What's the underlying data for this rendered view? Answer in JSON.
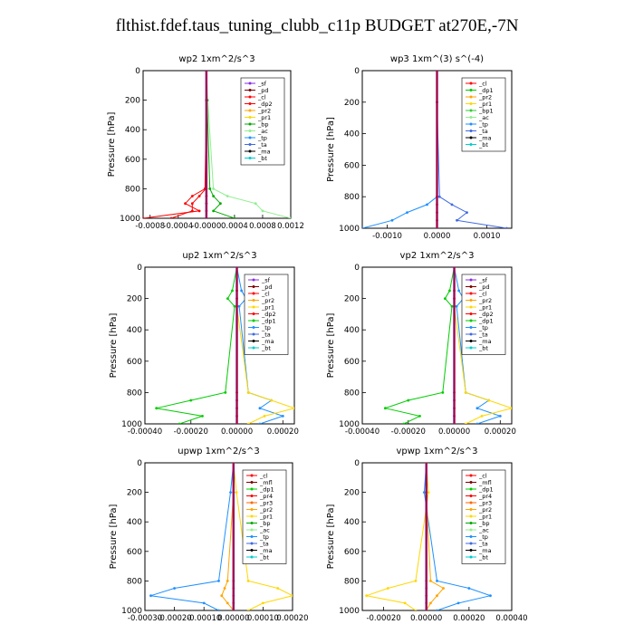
{
  "page": {
    "title": "flthist.fdef.taus_tuning_clubb_c11p  BUDGET at270E,-7N"
  },
  "colors": {
    "_sf": "#8a2be2",
    "_pd": "#800000",
    "_cl": "#ff0000",
    "_dp2": "#ff0000",
    "_pr2": "#ffa500",
    "_pr1": "#ffd700",
    "_bp": "#00aa00",
    "_ac": "#90ee90",
    "_tp": "#1e90ff",
    "_ta": "#4169e1",
    "_ma": "#000000",
    "_bt": "#00cccc",
    "_dp1": "#00cc00",
    "_mfl": "#800000",
    "_pr4": "#ff0000",
    "_pr3": "#ff6600",
    "_bp1": "#32cd32",
    "_pr1b": "#ffd700"
  },
  "chart_data": [
    {
      "type": "line",
      "title": "wp2   1xm^2/s^3",
      "ylabel": "Pressure  [hPa]",
      "xlim": [
        -0.0009,
        0.0012
      ],
      "ylim": [
        1000,
        0
      ],
      "xticks": [
        -0.0008,
        -0.0004,
        0.0,
        0.0004,
        0.0008,
        0.0012
      ],
      "xtick_labels": [
        "-0.0008",
        "-0.0004",
        "-0.0000",
        "0.0004",
        "0.0008",
        "0.0012"
      ],
      "yticks": [
        0,
        200,
        400,
        600,
        800,
        1000
      ],
      "ytick_labels": [
        "0",
        "200",
        "400",
        "600",
        "800",
        "1000"
      ],
      "legend": [
        "_sf",
        "_pd",
        "_cl",
        "_dp2",
        "_pr2",
        "_pr1",
        "_bp",
        "_ac",
        "_tp",
        "_ta",
        "_ma",
        "_bt"
      ],
      "legend_position": "top-right",
      "pressure": [
        0,
        200,
        800,
        850,
        900,
        950,
        1000
      ],
      "series": [
        {
          "name": "_cl",
          "values": [
            0,
            0,
            -2e-05,
            -0.0002,
            -0.0003,
            -0.0001,
            -0.0009
          ]
        },
        {
          "name": "_dp2",
          "values": [
            0,
            0,
            -1e-05,
            -0.0001,
            -0.0002,
            -0.0002,
            -0.0005
          ]
        },
        {
          "name": "_ac",
          "values": [
            0,
            2e-05,
            0.0001,
            0.0003,
            0.0007,
            0.0008,
            0.0012
          ]
        },
        {
          "name": "_bp",
          "values": [
            0,
            1e-05,
            5e-05,
            0.0001,
            0.0002,
            0.0001,
            0.0004
          ]
        },
        {
          "name": "_pd",
          "values": [
            0,
            0,
            0,
            0,
            0,
            0,
            0
          ]
        }
      ]
    },
    {
      "type": "line",
      "title": "wp3   1xm^(3) s^(-4)",
      "ylabel": "Pressure  [hPa]",
      "xlim": [
        -0.0015,
        0.0015
      ],
      "ylim": [
        1000,
        0
      ],
      "xticks": [
        -0.001,
        0.0,
        0.001
      ],
      "xtick_labels": [
        "-0.0010",
        "0.0000",
        "0.0010"
      ],
      "yticks": [
        0,
        200,
        400,
        600,
        800,
        1000
      ],
      "ytick_labels": [
        "0",
        "200",
        "400",
        "600",
        "800",
        "1000"
      ],
      "legend": [
        "_cl",
        "_dp1",
        "_pr2",
        "_pr1",
        "_bp1",
        "_ac",
        "_tp",
        "_ta",
        "_ma",
        "_bt"
      ],
      "legend_position": "top-right",
      "pressure": [
        0,
        200,
        800,
        850,
        900,
        950,
        1000
      ],
      "series": [
        {
          "name": "_tp",
          "values": [
            0,
            0,
            0,
            -0.0002,
            -0.0006,
            -0.0009,
            -0.0015
          ]
        },
        {
          "name": "_ta",
          "values": [
            0,
            0,
            5e-05,
            0.0003,
            0.0006,
            0.0004,
            0.0014
          ]
        },
        {
          "name": "_cl",
          "values": [
            0,
            0,
            0,
            0,
            0,
            0,
            0
          ]
        }
      ]
    },
    {
      "type": "line",
      "title": "up2   1xm^2/s^3",
      "ylabel": "Pressure  [hPa]",
      "xlim": [
        -0.0004,
        0.00025
      ],
      "ylim": [
        1000,
        0
      ],
      "xticks": [
        -0.0004,
        -0.0002,
        0.0,
        0.0002
      ],
      "xtick_labels": [
        "-0.00040",
        "-0.00020",
        "0.00000",
        "0.00020"
      ],
      "yticks": [
        0,
        200,
        400,
        600,
        800,
        1000
      ],
      "ytick_labels": [
        "0",
        "200",
        "400",
        "600",
        "800",
        "1000"
      ],
      "legend": [
        "_sf",
        "_pd",
        "_cl",
        "_pr2",
        "_pr1",
        "_dp2",
        "_dp1",
        "_tp",
        "_ta",
        "_ma",
        "_bt"
      ],
      "legend_position": "top-right",
      "pressure": [
        0,
        150,
        200,
        250,
        800,
        850,
        900,
        950,
        1000
      ],
      "series": [
        {
          "name": "_dp1",
          "values": [
            0,
            -2e-05,
            -4e-05,
            -1e-05,
            -5e-05,
            -0.0002,
            -0.00035,
            -0.00015,
            -0.00025
          ]
        },
        {
          "name": "_tp",
          "values": [
            0,
            2e-05,
            4e-05,
            1e-05,
            5e-05,
            0.00015,
            0.0001,
            0.0002,
            0.0001
          ]
        },
        {
          "name": "_pr1",
          "values": [
            0,
            0,
            0,
            0,
            5e-05,
            0.00015,
            0.00025,
            0.00012,
            5e-05
          ]
        },
        {
          "name": "_cl",
          "values": [
            0,
            0,
            0,
            0,
            0,
            0,
            0,
            0,
            0
          ]
        }
      ]
    },
    {
      "type": "line",
      "title": "vp2   1xm^2/s^3",
      "ylabel": "Pressure  [hPa]",
      "xlim": [
        -0.0004,
        0.00025
      ],
      "ylim": [
        1000,
        0
      ],
      "xticks": [
        -0.0004,
        -0.0002,
        0.0,
        0.0002
      ],
      "xtick_labels": [
        "-0.00040",
        "-0.00020",
        "0.00000",
        "0.00020"
      ],
      "yticks": [
        0,
        200,
        400,
        600,
        800,
        1000
      ],
      "ytick_labels": [
        "0",
        "200",
        "400",
        "600",
        "800",
        "1000"
      ],
      "legend": [
        "_sf",
        "_pd",
        "_cl",
        "_pr2",
        "_pr1",
        "_dp2",
        "_dp1",
        "_tp",
        "_ta",
        "_ma",
        "_bt"
      ],
      "legend_position": "top-right",
      "pressure": [
        0,
        150,
        200,
        250,
        800,
        850,
        900,
        950,
        1000
      ],
      "series": [
        {
          "name": "_dp1",
          "values": [
            0,
            -2e-05,
            -4e-05,
            -1e-05,
            -5e-05,
            -0.0002,
            -0.0003,
            -0.00015,
            -0.00022
          ]
        },
        {
          "name": "_tp",
          "values": [
            0,
            2e-05,
            4e-05,
            1e-05,
            5e-05,
            0.00015,
            0.0001,
            0.0002,
            0.0001
          ]
        },
        {
          "name": "_pr1",
          "values": [
            0,
            0,
            0,
            0,
            5e-05,
            0.00015,
            0.00025,
            0.00012,
            5e-05
          ]
        },
        {
          "name": "_cl",
          "values": [
            0,
            0,
            0,
            0,
            0,
            0,
            0,
            0,
            0
          ]
        }
      ]
    },
    {
      "type": "line",
      "title": "upwp   1xm^2/s^3",
      "ylabel": "Pressure  [hPa]",
      "xlim": [
        -0.0003,
        0.0002
      ],
      "ylim": [
        1000,
        0
      ],
      "xticks": [
        -0.0003,
        -0.0002,
        -0.0001,
        0.0,
        0.0001,
        0.0002
      ],
      "xtick_labels": [
        "-0.00030",
        "-0.00020",
        "-0.00010",
        "0.00000",
        "0.00010",
        "0.00020"
      ],
      "yticks": [
        0,
        200,
        400,
        600,
        800,
        1000
      ],
      "ytick_labels": [
        "0",
        "200",
        "400",
        "600",
        "800",
        "1000"
      ],
      "legend": [
        "_cl",
        "_mfl",
        "_dp1",
        "_pr4",
        "_pr3",
        "_pr2",
        "_pr1",
        "_bp",
        "_ac",
        "_tp",
        "_ta",
        "_ma",
        "_bt"
      ],
      "legend_position": "top-right",
      "pressure": [
        0,
        200,
        800,
        850,
        900,
        950,
        1000
      ],
      "series": [
        {
          "name": "_tp",
          "values": [
            0,
            -1e-05,
            -5e-05,
            -0.0002,
            -0.00028,
            -0.0001,
            -5e-05
          ]
        },
        {
          "name": "_pr1",
          "values": [
            0,
            1e-05,
            5e-05,
            0.00015,
            0.0002,
            0.0001,
            5e-05
          ]
        },
        {
          "name": "_pr2",
          "values": [
            0,
            0,
            -2e-05,
            -3e-05,
            -4e-05,
            -2e-05,
            0
          ]
        },
        {
          "name": "_cl",
          "values": [
            0,
            0,
            0,
            0,
            0,
            0,
            0
          ]
        }
      ]
    },
    {
      "type": "line",
      "title": "vpwp   1xm^2/s^3",
      "ylabel": "Pressure  [hPa]",
      "xlim": [
        -0.0003,
        0.0004
      ],
      "ylim": [
        1000,
        0
      ],
      "xticks": [
        -0.0002,
        0.0,
        0.0002,
        0.0004
      ],
      "xtick_labels": [
        "-0.00020",
        "0.00000",
        "0.00020",
        "0.00040"
      ],
      "yticks": [
        0,
        200,
        400,
        600,
        800,
        1000
      ],
      "ytick_labels": [
        "0",
        "200",
        "400",
        "600",
        "800",
        "1000"
      ],
      "legend": [
        "_cl",
        "_mfl",
        "_dp1",
        "_pr4",
        "_pr3",
        "_pr2",
        "_pr1",
        "_bp",
        "_ac",
        "_tp",
        "_ta",
        "_ma",
        "_bt"
      ],
      "legend_position": "top-right",
      "pressure": [
        0,
        200,
        800,
        850,
        900,
        950,
        1000
      ],
      "series": [
        {
          "name": "_tp",
          "values": [
            0,
            -1e-05,
            5e-05,
            0.0002,
            0.0003,
            0.00015,
            5e-05
          ]
        },
        {
          "name": "_pr1",
          "values": [
            0,
            1e-05,
            -5e-05,
            -0.00018,
            -0.00028,
            -0.0001,
            -5e-05
          ]
        },
        {
          "name": "_pr2",
          "values": [
            0,
            0,
            2e-05,
            8e-05,
            5e-05,
            2e-05,
            0
          ]
        },
        {
          "name": "_cl",
          "values": [
            0,
            0,
            0,
            0,
            0,
            0,
            0
          ]
        }
      ]
    }
  ]
}
